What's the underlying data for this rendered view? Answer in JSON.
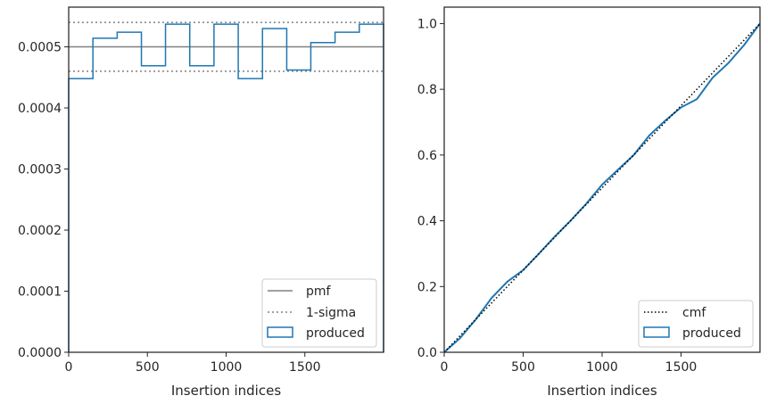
{
  "chart_data": [
    {
      "type": "step",
      "xlabel": "Insertion indices",
      "ylabel": "",
      "xlim": [
        0,
        2000
      ],
      "ylim": [
        0,
        0.000565
      ],
      "xticks": [
        0,
        500,
        1000,
        1500
      ],
      "xtick_labels": [
        "0",
        "500",
        "1000",
        "1500"
      ],
      "yticks": [
        0,
        0.0001,
        0.0002,
        0.0003,
        0.0004,
        0.0005
      ],
      "ytick_labels": [
        "0.0000",
        "0.0001",
        "0.0002",
        "0.0003",
        "0.0004",
        "0.0005"
      ],
      "pmf": 0.0005,
      "sigma_band": [
        0.00046,
        0.00054
      ],
      "bin_edges": [
        0,
        154,
        308,
        462,
        615,
        769,
        923,
        1077,
        1231,
        1385,
        1538,
        1692,
        1846,
        2000
      ],
      "produced": [
        0.000448,
        0.000514,
        0.000524,
        0.000469,
        0.000537,
        0.000469,
        0.000537,
        0.000448,
        0.00053,
        0.000462,
        0.000507,
        0.000524,
        0.000537
      ],
      "legend": [
        "pmf",
        "1-sigma",
        "produced"
      ],
      "legend_position": "lower right",
      "colors": {
        "pmf": "#808080",
        "sigma": "#808080",
        "produced": "#1f77b4"
      }
    },
    {
      "type": "line",
      "xlabel": "Insertion indices",
      "ylabel": "",
      "xlim": [
        0,
        2000
      ],
      "ylim": [
        0,
        1.05
      ],
      "xticks": [
        0,
        500,
        1000,
        1500
      ],
      "xtick_labels": [
        "0",
        "500",
        "1000",
        "1500"
      ],
      "yticks": [
        0,
        0.2,
        0.4,
        0.6,
        0.8,
        1.0
      ],
      "ytick_labels": [
        "0.0",
        "0.2",
        "0.4",
        "0.6",
        "0.8",
        "1.0"
      ],
      "cmf": {
        "x": [
          0,
          2000
        ],
        "y": [
          0,
          1.0
        ]
      },
      "produced": {
        "x": [
          0,
          100,
          200,
          300,
          400,
          500,
          600,
          700,
          800,
          900,
          1000,
          1100,
          1200,
          1300,
          1400,
          1500,
          1600,
          1700,
          1800,
          1900,
          2000
        ],
        "y": [
          0,
          0.043,
          0.1,
          0.165,
          0.215,
          0.25,
          0.3,
          0.352,
          0.4,
          0.452,
          0.51,
          0.555,
          0.6,
          0.66,
          0.705,
          0.745,
          0.77,
          0.835,
          0.88,
          0.935,
          1.0
        ]
      },
      "legend": [
        "cmf",
        "produced"
      ],
      "legend_position": "lower right",
      "colors": {
        "cmf": "#000000",
        "produced": "#1f77b4"
      }
    }
  ]
}
